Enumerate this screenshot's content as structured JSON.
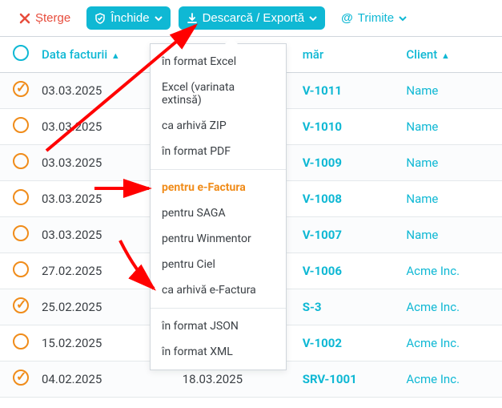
{
  "toolbar": {
    "delete_label": "Șterge",
    "close_label": "Închide",
    "export_label": "Descarcă / Exportă",
    "send_label": "Trimite"
  },
  "table": {
    "headers": {
      "date": "Data facturii",
      "due": "",
      "number_partial": "măr",
      "client": "Client"
    },
    "rows": [
      {
        "checked": true,
        "date": "03.03.2025",
        "due": "",
        "num": "V-1011",
        "client": "Name"
      },
      {
        "checked": false,
        "date": "03.03.2025",
        "due": "",
        "num": "V-1010",
        "client": "Name"
      },
      {
        "checked": false,
        "date": "03.03.2025",
        "due": "",
        "num": "V-1009",
        "client": "Name"
      },
      {
        "checked": false,
        "date": "03.03.2025",
        "due": "",
        "num": "V-1008",
        "client": "Name"
      },
      {
        "checked": false,
        "date": "03.03.2025",
        "due": "",
        "num": "V-1007",
        "client": "Name"
      },
      {
        "checked": false,
        "date": "27.02.2025",
        "due": "",
        "num": "V-1006",
        "client": "Acme Inc."
      },
      {
        "checked": true,
        "date": "25.02.2025",
        "due": "",
        "num": "S-3",
        "client": "Acme Inc."
      },
      {
        "checked": false,
        "date": "15.02.2025",
        "due": "",
        "num": "V-1002",
        "client": "Acme Inc."
      },
      {
        "checked": true,
        "date": "04.02.2025",
        "due": "18.03.2025",
        "num": "SRV-1001",
        "client": "Acme Inc."
      }
    ]
  },
  "dropdown": {
    "groups": [
      {
        "items": [
          {
            "label": "în format Excel"
          },
          {
            "label": "Excel (varinata extinsă)"
          },
          {
            "label": "ca arhivă ZIP"
          },
          {
            "label": "în format PDF"
          }
        ]
      },
      {
        "items": [
          {
            "label": "pentru e-Factura",
            "highlight": true
          },
          {
            "label": "pentru SAGA"
          },
          {
            "label": "pentru Winmentor"
          },
          {
            "label": "pentru Ciel"
          },
          {
            "label": "ca arhivă e-Factura"
          }
        ]
      },
      {
        "items": [
          {
            "label": "în format JSON"
          },
          {
            "label": "în format XML"
          }
        ]
      }
    ]
  },
  "colors": {
    "primary": "#0fb8d4",
    "danger": "#e74c3c",
    "accent_orange": "#f08c1a",
    "border": "#d0d6dc",
    "row_border": "#e4e8eb",
    "text": "#3a3f44",
    "arrow": "#ff0000"
  }
}
